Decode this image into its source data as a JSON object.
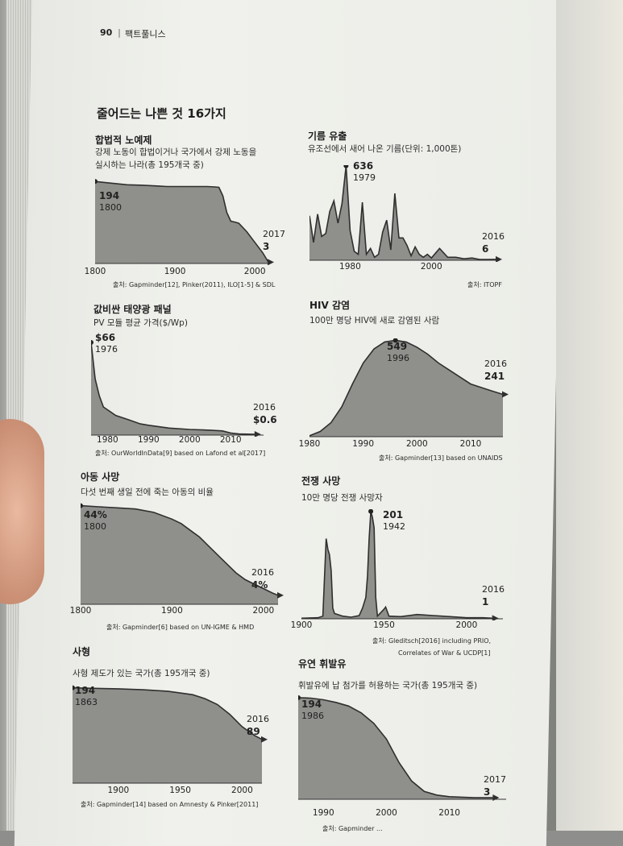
{
  "header": {
    "page_number": "90",
    "running_title": "팩트풀니스"
  },
  "main_title": "줄어드는 나쁜 것 16가지",
  "panels": [
    {
      "key": "slavery",
      "title": "합법적 노예제",
      "subtitle": [
        "강제 노동이 합법이거나 국가에서 강제 노동을",
        "실시하는 나라(총 195개국 중)"
      ],
      "source": [
        "출처: Gapminder[12], Pinker(2011), ILO[1-5] & SDL"
      ],
      "start_label": [
        "194",
        "1800"
      ],
      "end_label": [
        "2017",
        "3"
      ],
      "ticks": [
        "1800",
        "1900",
        "2000"
      ],
      "chart_data": {
        "type": "area",
        "x": [
          1800,
          1820,
          1840,
          1860,
          1870,
          1880,
          1890,
          1900,
          1910,
          1920,
          1930,
          1940,
          1950,
          1955,
          1960,
          1965,
          1970,
          1975,
          1980,
          1990,
          2000,
          2010,
          2017
        ],
        "y": [
          194,
          190,
          186,
          185,
          184,
          183,
          182,
          182,
          182,
          182,
          182,
          182,
          181,
          180,
          160,
          120,
          100,
          98,
          95,
          75,
          50,
          25,
          3
        ],
        "xlim": [
          1800,
          2017
        ],
        "ylim": [
          0,
          200
        ]
      }
    },
    {
      "key": "oil",
      "title": "기름 유출",
      "subtitle": [
        "유조선에서 새어 나온 기름(단위: 1,000톤)"
      ],
      "source": [
        "출처: ITOPF"
      ],
      "start_label": [
        "636",
        "1979"
      ],
      "end_label": [
        "2016",
        "6"
      ],
      "ticks": [
        "1980",
        "2000"
      ],
      "chart_data": {
        "type": "area",
        "x": [
          1970,
          1971,
          1972,
          1973,
          1974,
          1975,
          1976,
          1977,
          1978,
          1979,
          1980,
          1981,
          1982,
          1983,
          1984,
          1985,
          1986,
          1987,
          1988,
          1989,
          1990,
          1991,
          1992,
          1993,
          1994,
          1995,
          1996,
          1997,
          1998,
          1999,
          2000,
          2002,
          2004,
          2006,
          2008,
          2010,
          2012,
          2014,
          2016
        ],
        "y": [
          300,
          120,
          310,
          160,
          180,
          330,
          400,
          250,
          380,
          636,
          200,
          60,
          40,
          390,
          40,
          80,
          20,
          40,
          190,
          270,
          70,
          450,
          150,
          150,
          100,
          30,
          90,
          40,
          20,
          40,
          15,
          80,
          20,
          20,
          10,
          15,
          5,
          5,
          6
        ],
        "xlim": [
          1970,
          2016
        ],
        "ylim": [
          0,
          640
        ]
      }
    },
    {
      "key": "solar",
      "title": "값비싼 태양광 패널",
      "subtitle": [
        "PV 모듈 평균 가격($/Wp)"
      ],
      "source": [
        "출처: OurWorldInData[9] based on Lafond et al[2017]"
      ],
      "start_label": [
        "$66",
        "1976"
      ],
      "end_label": [
        "2016",
        "$0.6"
      ],
      "ticks": [
        "1980",
        "1990",
        "2000",
        "2010"
      ],
      "chart_data": {
        "type": "area",
        "x": [
          1976,
          1977,
          1978,
          1979,
          1980,
          1982,
          1985,
          1988,
          1990,
          1995,
          2000,
          2005,
          2008,
          2010,
          2012,
          2016
        ],
        "y": [
          66,
          40,
          28,
          20,
          18,
          14,
          11,
          8,
          7,
          5,
          4,
          3.5,
          3,
          1.5,
          0.8,
          0.6
        ],
        "xlim": [
          1976,
          2018
        ],
        "ylim": [
          0,
          70
        ]
      }
    },
    {
      "key": "hiv",
      "title": "HIV 감염",
      "subtitle": [
        "100만 명당 HIV에 새로 감염된 사람"
      ],
      "source": [
        "출처: Gapminder[13] based on UNAIDS"
      ],
      "start_label": [
        "549",
        "1996"
      ],
      "end_label": [
        "2016",
        "241"
      ],
      "ticks": [
        "1980",
        "1990",
        "2000",
        "2010"
      ],
      "chart_data": {
        "type": "area",
        "x": [
          1980,
          1982,
          1984,
          1986,
          1988,
          1990,
          1992,
          1994,
          1996,
          1998,
          2000,
          2002,
          2004,
          2006,
          2008,
          2010,
          2012,
          2014,
          2016
        ],
        "y": [
          5,
          30,
          80,
          170,
          300,
          420,
          500,
          540,
          549,
          540,
          510,
          470,
          420,
          380,
          340,
          300,
          280,
          260,
          241
        ],
        "xlim": [
          1980,
          2016
        ],
        "ylim": [
          0,
          560
        ]
      }
    },
    {
      "key": "child",
      "title": "아동 사망",
      "subtitle": [
        "다섯 번째 생일 전에 죽는 아동의 비율"
      ],
      "source": [
        "출처: Gapminder[6] based on UN-IGME & HMD"
      ],
      "start_label": [
        "44%",
        "1800"
      ],
      "end_label": [
        "2016",
        "4%"
      ],
      "ticks": [
        "1800",
        "1900",
        "2000"
      ],
      "chart_data": {
        "type": "area",
        "x": [
          1800,
          1820,
          1840,
          1860,
          1880,
          1900,
          1910,
          1920,
          1930,
          1940,
          1950,
          1960,
          1970,
          1980,
          1990,
          2000,
          2010,
          2016
        ],
        "y": [
          44,
          43.5,
          43,
          42.5,
          41,
          38,
          36,
          33,
          30,
          26,
          22,
          18,
          14,
          11,
          9,
          7,
          5,
          4
        ],
        "xlim": [
          1800,
          2016
        ],
        "ylim": [
          0,
          46
        ]
      }
    },
    {
      "key": "war",
      "title": "전쟁 사망",
      "subtitle": [
        "10만 명당 전쟁 사망자"
      ],
      "source": [
        "출처: Gleditsch[2016] including PRIO,",
        "Correlates of War & UCDP[1]"
      ],
      "start_label": [
        "201",
        "1942"
      ],
      "end_label": [
        "2016",
        "1"
      ],
      "ticks": [
        "1900",
        "1950",
        "2000"
      ],
      "chart_data": {
        "type": "area",
        "x": [
          1900,
          1910,
          1913,
          1914,
          1915,
          1916,
          1917,
          1918,
          1919,
          1920,
          1925,
          1930,
          1935,
          1937,
          1939,
          1940,
          1941,
          1942,
          1943,
          1944,
          1945,
          1946,
          1950,
          1951,
          1953,
          1960,
          1970,
          1980,
          1990,
          2000,
          2010,
          2016
        ],
        "y": [
          1,
          2,
          5,
          80,
          150,
          130,
          120,
          90,
          20,
          10,
          5,
          3,
          6,
          20,
          40,
          80,
          150,
          201,
          190,
          170,
          40,
          5,
          18,
          22,
          5,
          4,
          8,
          6,
          4,
          2,
          2,
          1
        ],
        "xlim": [
          1900,
          2022
        ],
        "ylim": [
          0,
          205
        ]
      }
    },
    {
      "key": "death",
      "title": "사형",
      "subtitle": [
        "사형 제도가 있는 국가(총 195개국 중)"
      ],
      "source": [
        "출처: Gapminder[14] based on Amnesty & Pinker[2011]"
      ],
      "start_label": [
        "194",
        "1863"
      ],
      "end_label": [
        "2016",
        "89"
      ],
      "ticks": [
        "1900",
        "1950",
        "2000"
      ],
      "chart_data": {
        "type": "area",
        "x": [
          1863,
          1880,
          1900,
          1920,
          1940,
          1960,
          1970,
          1980,
          1990,
          2000,
          2010,
          2016
        ],
        "y": [
          194,
          193,
          192,
          190,
          187,
          180,
          172,
          160,
          140,
          115,
          97,
          89
        ],
        "xlim": [
          1863,
          2016
        ],
        "ylim": [
          0,
          200
        ]
      }
    },
    {
      "key": "leaded",
      "title": "유연 휘발유",
      "subtitle": [
        "휘발유에 납 첨가를 허용하는 국가(총 195개국 중)"
      ],
      "source": [
        "출처: Gapminder ..."
      ],
      "start_label": [
        "194",
        "1986"
      ],
      "end_label": [
        "2017",
        "3"
      ],
      "ticks": [
        "1990",
        "2000",
        "2010"
      ],
      "chart_data": {
        "type": "area",
        "x": [
          1986,
          1988,
          1990,
          1992,
          1994,
          1996,
          1998,
          2000,
          2002,
          2004,
          2006,
          2008,
          2010,
          2012,
          2014,
          2017
        ],
        "y": [
          194,
          193,
          190,
          185,
          178,
          165,
          145,
          115,
          70,
          35,
          15,
          8,
          5,
          4,
          3,
          3
        ],
        "xlim": [
          1986,
          2019
        ],
        "ylim": [
          0,
          200
        ]
      }
    }
  ]
}
